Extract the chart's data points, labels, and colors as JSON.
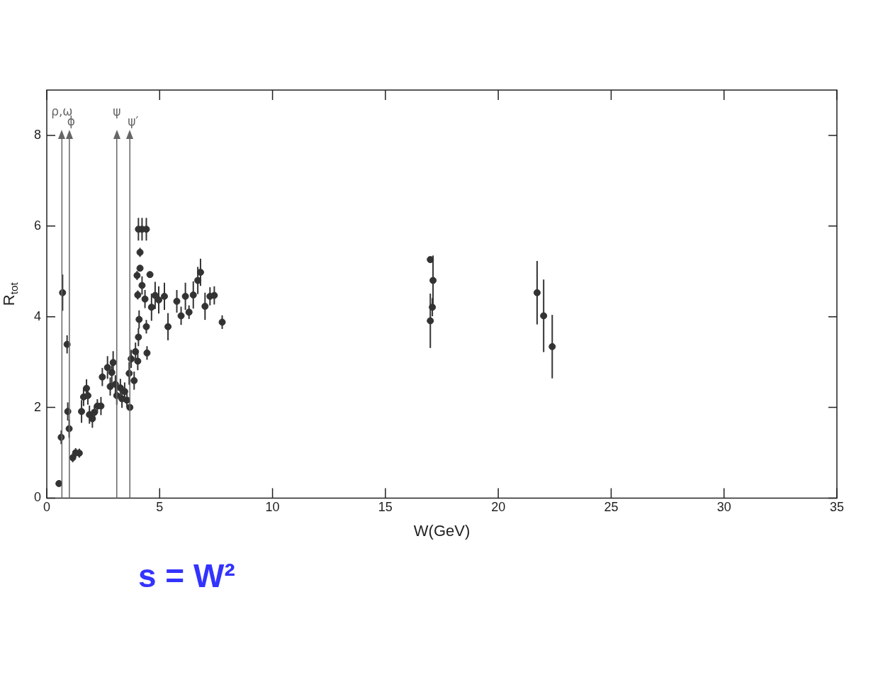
{
  "chart_data": {
    "type": "scatter",
    "xlabel": "W(GeV)",
    "ylabel": "R$_{tot}$",
    "xlim": [
      0,
      35
    ],
    "xticks": [
      0,
      5,
      10,
      15,
      20,
      25,
      30,
      35
    ],
    "ylim": [
      0,
      9
    ],
    "yticks": [
      0,
      2,
      4,
      6,
      8
    ],
    "grid": false,
    "legend": false,
    "marker": "circle",
    "series": [
      {
        "color": "#333333",
        "x": [
          0.54,
          0.64,
          0.7,
          0.9,
          0.93,
          0.99,
          1.15,
          1.28,
          1.44,
          1.54,
          1.63,
          1.76,
          1.82,
          1.89,
          2.02,
          2.11,
          2.24,
          2.4,
          2.46,
          2.69,
          2.81,
          2.88,
          2.94,
          3.04,
          3.1,
          3.26,
          3.33,
          3.45,
          3.55,
          3.68,
          3.65,
          3.74,
          3.87,
          3.93,
          4.03,
          4.06,
          4.09,
          4.06,
          4.22,
          4.41,
          4.13,
          4.13,
          4.0,
          4.03,
          4.22,
          4.35,
          4.41,
          4.44,
          4.57,
          4.64,
          4.8,
          4.96,
          5.21,
          5.37,
          5.76,
          5.95,
          6.14,
          6.3,
          6.49,
          6.69,
          6.81,
          7.01,
          7.23,
          7.42,
          7.77,
          16.99,
          17.11,
          17.08,
          16.99,
          21.72,
          22.01,
          22.39
        ],
        "values": [
          0.32,
          1.34,
          4.53,
          3.39,
          1.91,
          1.53,
          0.89,
          1.0,
          0.99,
          1.91,
          2.23,
          2.42,
          2.26,
          1.84,
          1.75,
          1.89,
          2.03,
          2.03,
          2.67,
          2.88,
          2.46,
          2.77,
          2.99,
          2.51,
          2.26,
          2.43,
          2.19,
          2.35,
          2.16,
          2.0,
          2.75,
          3.07,
          2.59,
          3.23,
          3.02,
          3.55,
          3.94,
          5.93,
          5.93,
          5.93,
          5.42,
          5.07,
          4.91,
          4.48,
          4.69,
          4.39,
          3.78,
          3.2,
          4.93,
          4.21,
          4.47,
          4.37,
          4.45,
          3.78,
          4.34,
          4.02,
          4.45,
          4.1,
          4.48,
          4.8,
          4.98,
          4.23,
          4.45,
          4.47,
          3.88,
          5.26,
          4.8,
          4.21,
          3.91,
          4.53,
          4.02,
          3.34
        ],
        "errors": [
          null,
          0.15,
          0.4,
          0.2,
          0.2,
          0.2,
          0.1,
          0.1,
          0.1,
          0.25,
          0.2,
          0.2,
          0.2,
          0.2,
          0.2,
          0.15,
          0.15,
          0.2,
          0.2,
          0.25,
          0.2,
          0.25,
          0.25,
          0.2,
          0.2,
          0.2,
          0.2,
          0.2,
          0.15,
          null,
          0.25,
          0.2,
          0.2,
          0.2,
          0.2,
          0.2,
          0.2,
          0.25,
          0.25,
          0.25,
          0.1,
          null,
          0.1,
          0.1,
          0.2,
          0.2,
          0.15,
          0.15,
          null,
          0.3,
          0.3,
          0.3,
          0.3,
          0.3,
          0.25,
          0.2,
          0.3,
          0.15,
          0.3,
          0.3,
          0.3,
          0.3,
          0.2,
          0.2,
          0.15,
          null,
          0.55,
          0.2,
          0.6,
          0.7,
          0.8,
          0.7
        ]
      }
    ],
    "ref_lines": [
      {
        "axis": "x",
        "value": 0.67,
        "label": "ρ,ω",
        "color": "#666666"
      },
      {
        "axis": "x",
        "value": 1.0,
        "label": "ϕ",
        "color": "#666666"
      },
      {
        "axis": "x",
        "value": 3.1,
        "label": "ψ",
        "color": "#666666"
      },
      {
        "axis": "x",
        "value": 3.68,
        "label": "ψ′",
        "color": "#666666"
      }
    ],
    "annotations": [
      "s = W²"
    ]
  }
}
